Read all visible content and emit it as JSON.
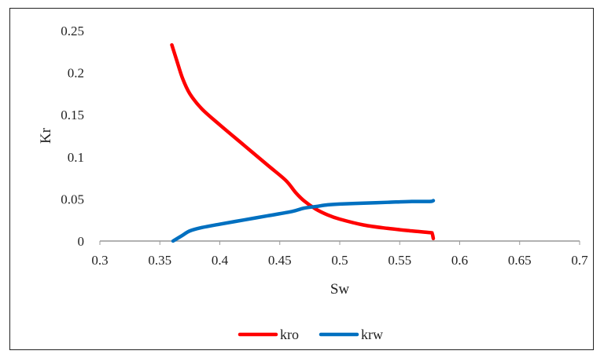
{
  "chart_data": {
    "type": "line",
    "xlabel": "Sw",
    "ylabel": "Kr",
    "xlim": [
      0.3,
      0.7
    ],
    "ylim": [
      0,
      0.25
    ],
    "xticks": [
      "0.3",
      "0.35",
      "0.4",
      "0.45",
      "0.5",
      "0.55",
      "0.6",
      "0.65",
      "0.7"
    ],
    "yticks": [
      "0",
      "0.05",
      "0.1",
      "0.15",
      "0.2",
      "0.25"
    ],
    "grid": false,
    "legend_position": "bottom",
    "series": [
      {
        "name": "kro",
        "color": "#ff0000",
        "points": [
          [
            0.36,
            0.233
          ],
          [
            0.364,
            0.215
          ],
          [
            0.369,
            0.193
          ],
          [
            0.375,
            0.175
          ],
          [
            0.385,
            0.157
          ],
          [
            0.4,
            0.138
          ],
          [
            0.42,
            0.114
          ],
          [
            0.44,
            0.09
          ],
          [
            0.455,
            0.072
          ],
          [
            0.463,
            0.058
          ],
          [
            0.47,
            0.048
          ],
          [
            0.48,
            0.038
          ],
          [
            0.49,
            0.031
          ],
          [
            0.5,
            0.026
          ],
          [
            0.52,
            0.019
          ],
          [
            0.54,
            0.015
          ],
          [
            0.56,
            0.012
          ],
          [
            0.575,
            0.01
          ],
          [
            0.577,
            0.009
          ],
          [
            0.578,
            0.003
          ]
        ]
      },
      {
        "name": "krw",
        "color": "#0070c0",
        "points": [
          [
            0.361,
            0.0
          ],
          [
            0.368,
            0.006
          ],
          [
            0.375,
            0.012
          ],
          [
            0.385,
            0.016
          ],
          [
            0.4,
            0.02
          ],
          [
            0.42,
            0.025
          ],
          [
            0.44,
            0.03
          ],
          [
            0.46,
            0.035
          ],
          [
            0.47,
            0.039
          ],
          [
            0.48,
            0.041
          ],
          [
            0.49,
            0.043
          ],
          [
            0.5,
            0.044
          ],
          [
            0.52,
            0.045
          ],
          [
            0.54,
            0.046
          ],
          [
            0.56,
            0.047
          ],
          [
            0.575,
            0.047
          ],
          [
            0.578,
            0.048
          ]
        ]
      }
    ]
  }
}
